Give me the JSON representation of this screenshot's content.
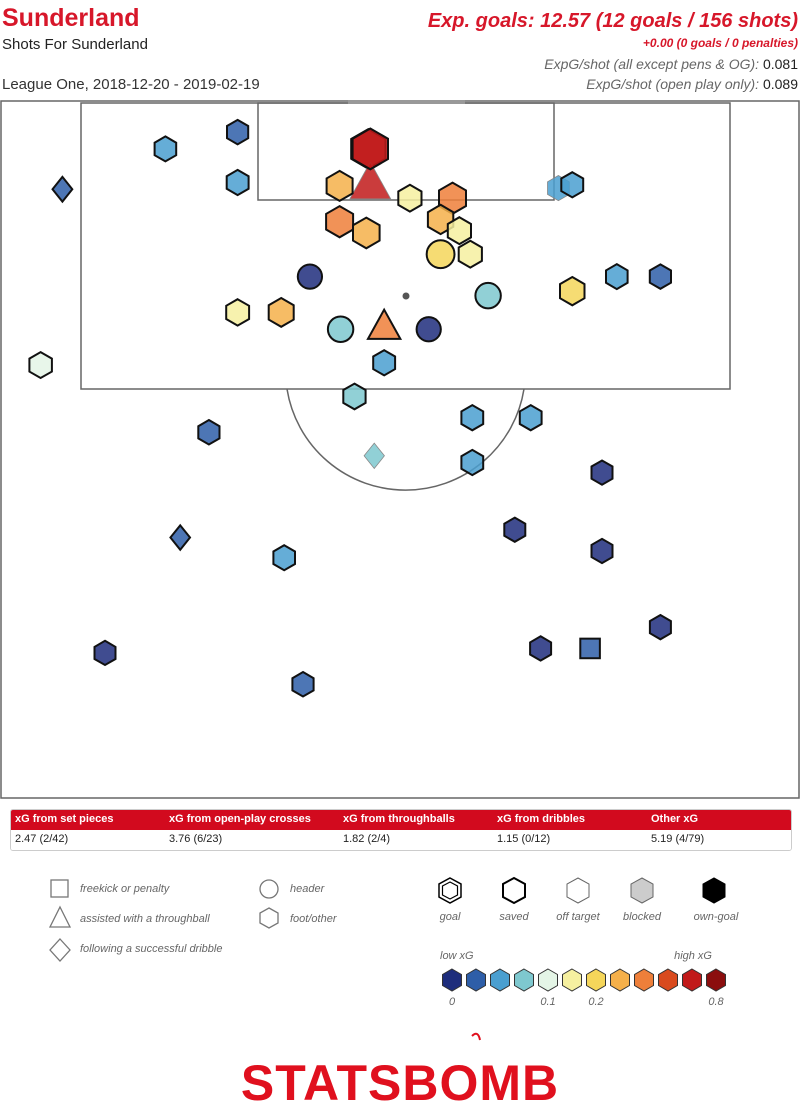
{
  "header": {
    "team": "Sunderland",
    "subtitle": "Shots For Sunderland",
    "league_dates": "League One, 2018-12-20 - 2019-02-19",
    "exp_goals": "Exp. goals: 12.57 (12 goals / 156 shots)",
    "extra_line": "+0.00 (0 goals / 0 penalties)",
    "stat1_label": "ExpG/shot (all except pens & OG):",
    "stat1_value": "0.081",
    "stat2_label": "ExpG/shot (open play only):",
    "stat2_value": "0.089"
  },
  "table": {
    "headers": [
      "xG from set pieces",
      "xG from open-play crosses",
      "xG from throughballs",
      "xG from dribbles",
      "Other xG"
    ],
    "values": [
      "2.47 (2/42)",
      "3.76 (6/23)",
      "1.82 (2/4)",
      "1.15 (0/12)",
      "5.19 (4/79)"
    ]
  },
  "legend": {
    "shape_labels": [
      "freekick or penalty",
      "assisted with a throughball",
      "following a successful dribble",
      "header",
      "foot/other"
    ],
    "outcome_labels": [
      "goal",
      "saved",
      "off target",
      "blocked",
      "own-goal"
    ],
    "scale_low": "low xG",
    "scale_high": "high xG",
    "scale_ticks": [
      "0",
      "0.1",
      "0.2",
      "0.8"
    ],
    "scale_colors": [
      "#1e2d7c",
      "#2e5ea8",
      "#4a9fd0",
      "#7ec8cf",
      "#e4f5e6",
      "#f6f0a0",
      "#f5d65a",
      "#f5b04a",
      "#ee7f3a",
      "#d94a1e",
      "#c11a1a",
      "#8b0e0e"
    ]
  },
  "logo": {
    "text": "STATSBOMB",
    "color": "#e0101e"
  },
  "colors": {
    "accent": "#d7172a",
    "pitch_line": "#666666"
  },
  "chart_data": {
    "type": "scatter",
    "description_units": "pitch coordinates in yards: x = distance across pitch width (0-80), y = distance from goal line (0-60 shown)",
    "shots": [
      {
        "x": 36.8,
        "y": 4.1,
        "xg": 0.65,
        "shape": "foot",
        "outcome": "goal"
      },
      {
        "x": 37.0,
        "y": 7.1,
        "xg": 0.7,
        "shape": "throughball",
        "outcome": "off"
      },
      {
        "x": 33.9,
        "y": 7.4,
        "xg": 0.25,
        "shape": "foot",
        "outcome": "goal"
      },
      {
        "x": 41.0,
        "y": 8.5,
        "xg": 0.12,
        "shape": "foot",
        "outcome": "goal"
      },
      {
        "x": 45.3,
        "y": 8.5,
        "xg": 0.3,
        "shape": "foot",
        "outcome": "saved"
      },
      {
        "x": 44.1,
        "y": 10.4,
        "xg": 0.22,
        "shape": "foot",
        "outcome": "goal"
      },
      {
        "x": 33.9,
        "y": 10.6,
        "xg": 0.3,
        "shape": "foot",
        "outcome": "saved"
      },
      {
        "x": 36.6,
        "y": 11.6,
        "xg": 0.28,
        "shape": "foot",
        "outcome": "goal"
      },
      {
        "x": 46.0,
        "y": 11.4,
        "xg": 0.12,
        "shape": "foot",
        "outcome": "goal"
      },
      {
        "x": 47.1,
        "y": 13.5,
        "xg": 0.12,
        "shape": "foot",
        "outcome": "goal"
      },
      {
        "x": 44.1,
        "y": 13.5,
        "xg": 0.16,
        "shape": "header",
        "outcome": "saved"
      },
      {
        "x": 56.0,
        "y": 7.6,
        "xg": 0.05,
        "shape": "foot",
        "outcome": "off"
      },
      {
        "x": 57.4,
        "y": 7.3,
        "xg": 0.05,
        "shape": "foot",
        "outcome": "saved"
      },
      {
        "x": 57.4,
        "y": 16.8,
        "xg": 0.18,
        "shape": "foot",
        "outcome": "saved"
      },
      {
        "x": 61.9,
        "y": 15.5,
        "xg": 0.04,
        "shape": "foot",
        "outcome": "saved"
      },
      {
        "x": 66.3,
        "y": 15.5,
        "xg": 0.02,
        "shape": "foot",
        "outcome": "saved"
      },
      {
        "x": 23.6,
        "y": 2.6,
        "xg": 0.02,
        "shape": "foot",
        "outcome": "saved"
      },
      {
        "x": 28.0,
        "y": 18.7,
        "xg": 0.2,
        "shape": "foot",
        "outcome": "saved"
      },
      {
        "x": 23.6,
        "y": 18.7,
        "xg": 0.1,
        "shape": "foot",
        "outcome": "goal"
      },
      {
        "x": 38.4,
        "y": 19.9,
        "xg": 0.35,
        "shape": "throughball",
        "outcome": "goal"
      },
      {
        "x": 34.0,
        "y": 20.2,
        "xg": 0.06,
        "shape": "header",
        "outcome": "saved"
      },
      {
        "x": 42.9,
        "y": 20.2,
        "xg": 0.01,
        "shape": "header",
        "outcome": "saved"
      },
      {
        "x": 38.4,
        "y": 23.2,
        "xg": 0.05,
        "shape": "foot",
        "outcome": "saved"
      },
      {
        "x": 35.4,
        "y": 26.2,
        "xg": 0.07,
        "shape": "foot",
        "outcome": "goal"
      },
      {
        "x": 30.9,
        "y": 15.5,
        "xg": 0.01,
        "shape": "header",
        "outcome": "saved"
      },
      {
        "x": 48.9,
        "y": 17.2,
        "xg": 0.06,
        "shape": "header",
        "outcome": "saved"
      },
      {
        "x": 47.3,
        "y": 28.1,
        "xg": 0.05,
        "shape": "foot",
        "outcome": "saved"
      },
      {
        "x": 53.2,
        "y": 28.1,
        "xg": 0.05,
        "shape": "foot",
        "outcome": "saved"
      },
      {
        "x": 47.3,
        "y": 32.1,
        "xg": 0.05,
        "shape": "foot",
        "outcome": "saved"
      },
      {
        "x": 20.7,
        "y": 29.4,
        "xg": 0.02,
        "shape": "foot",
        "outcome": "saved"
      },
      {
        "x": 5.9,
        "y": 7.7,
        "xg": 0.03,
        "shape": "dribble",
        "outcome": "saved"
      },
      {
        "x": 3.7,
        "y": 23.4,
        "xg": 0.08,
        "shape": "foot",
        "outcome": "saved"
      },
      {
        "x": 60.4,
        "y": 33.0,
        "xg": 0.01,
        "shape": "foot",
        "outcome": "saved"
      },
      {
        "x": 60.4,
        "y": 40.0,
        "xg": 0.01,
        "shape": "foot",
        "outcome": "saved"
      },
      {
        "x": 51.6,
        "y": 38.1,
        "xg": 0.01,
        "shape": "foot",
        "outcome": "saved"
      },
      {
        "x": 10.2,
        "y": 49.1,
        "xg": 0.01,
        "shape": "foot",
        "outcome": "saved"
      },
      {
        "x": 17.8,
        "y": 38.8,
        "xg": 0.02,
        "shape": "dribble",
        "outcome": "saved"
      },
      {
        "x": 37.0,
        "y": 4.1,
        "xg": 0.7,
        "shape": "foot",
        "outcome": "goal"
      },
      {
        "x": 16.3,
        "y": 4.1,
        "xg": 0.04,
        "shape": "foot",
        "outcome": "saved"
      },
      {
        "x": 23.6,
        "y": 7.1,
        "xg": 0.05,
        "shape": "foot",
        "outcome": "saved"
      },
      {
        "x": 66.3,
        "y": 46.8,
        "xg": 0.01,
        "shape": "foot",
        "outcome": "saved"
      },
      {
        "x": 28.3,
        "y": 40.6,
        "xg": 0.04,
        "shape": "foot",
        "outcome": "saved"
      },
      {
        "x": 54.2,
        "y": 48.7,
        "xg": 0.01,
        "shape": "foot",
        "outcome": "saved"
      },
      {
        "x": 30.2,
        "y": 51.9,
        "xg": 0.02,
        "shape": "foot",
        "outcome": "saved"
      },
      {
        "x": 37.4,
        "y": 31.5,
        "xg": 0.06,
        "shape": "dribble",
        "outcome": "off"
      },
      {
        "x": 59.2,
        "y": 48.7,
        "xg": 0.02,
        "shape": "fk",
        "outcome": "saved"
      }
    ]
  }
}
